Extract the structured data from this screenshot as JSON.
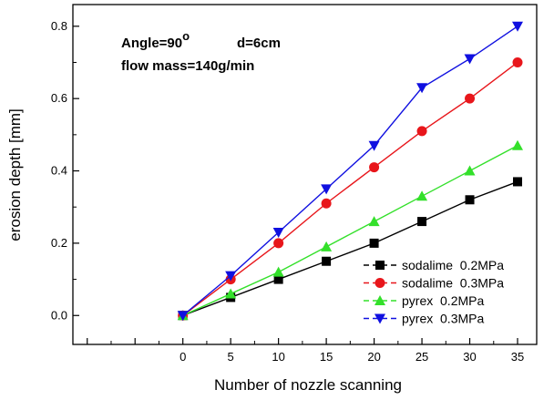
{
  "chart_data": {
    "type": "line",
    "xlabel": "Number of nozzle scanning",
    "ylabel": "erosion depth [mm]",
    "xlim": [
      -11.5,
      37
    ],
    "ylim": [
      -0.08,
      0.86
    ],
    "xticks": [
      "0",
      "5",
      "10",
      "15",
      "20",
      "25",
      "30",
      "35"
    ],
    "yticks": [
      "0.0",
      "0.2",
      "0.4",
      "0.6",
      "0.8"
    ],
    "annotations": {
      "angle_text": "Angle=90",
      "angle_sup": "o",
      "distance": "d=6cm",
      "flow": "flow mass=140g/min"
    },
    "legend_position": "bottom-right",
    "x": [
      0,
      5,
      10,
      15,
      20,
      25,
      30,
      35
    ],
    "series": [
      {
        "name": "sodalime  0.2MPa",
        "marker": "square",
        "color": "#000000",
        "values": [
          0.0,
          0.05,
          0.1,
          0.15,
          0.2,
          0.26,
          0.32,
          0.37
        ]
      },
      {
        "name": "sodalime  0.3MPa",
        "marker": "circle",
        "color": "#e8161b",
        "values": [
          0.0,
          0.1,
          0.2,
          0.31,
          0.41,
          0.51,
          0.6,
          0.7
        ]
      },
      {
        "name": "pyrex  0.2MPa",
        "marker": "triangle-up",
        "color": "#33e02a",
        "values": [
          0.0,
          0.06,
          0.12,
          0.19,
          0.26,
          0.33,
          0.4,
          0.47
        ]
      },
      {
        "name": "pyrex  0.3MPa",
        "marker": "triangle-down",
        "color": "#1010e0",
        "values": [
          0.0,
          0.11,
          0.23,
          0.35,
          0.47,
          0.63,
          0.71,
          0.8
        ]
      }
    ]
  }
}
